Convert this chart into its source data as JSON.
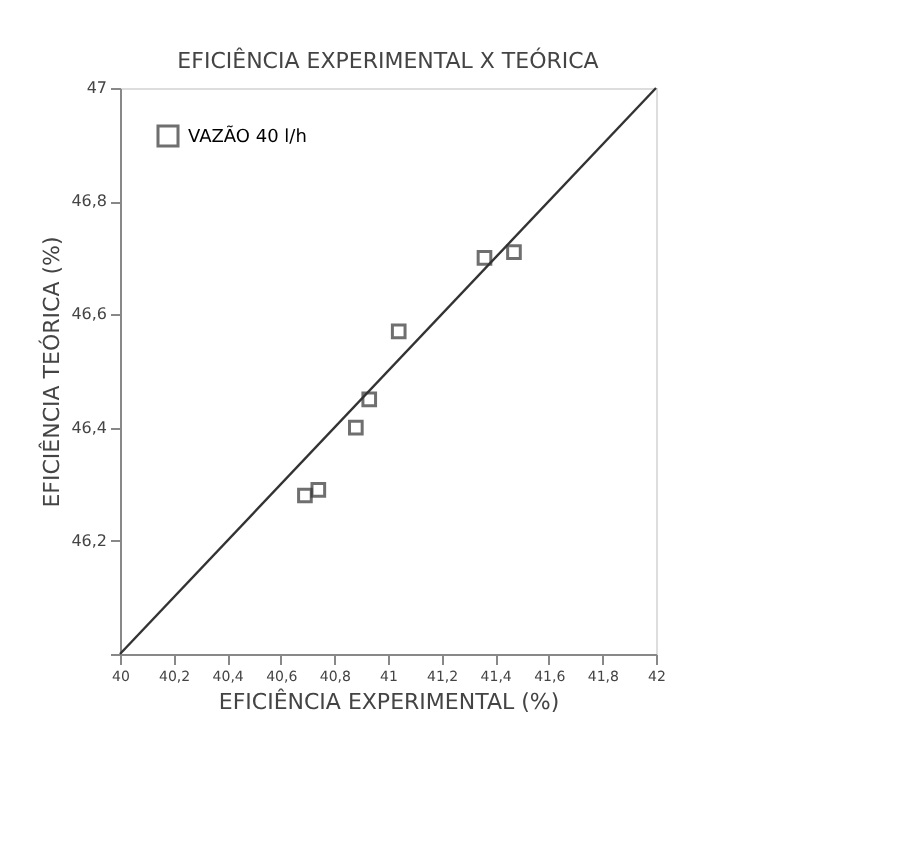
{
  "chart_data": {
    "type": "scatter",
    "title": "EFICIÊNCIA EXPERIMENTAL X TEÓRICA",
    "xlabel": "EFICIÊNCIA EXPERIMENTAL (%)",
    "ylabel": "EFICIÊNCIA TEÓRICA (%)",
    "series": [
      {
        "name": "VAZÃO 40 l/h",
        "color": "#333333",
        "marker": "square",
        "x": [
          40.69,
          40.74,
          40.88,
          40.93,
          41.04,
          41.36,
          41.47
        ],
        "values": [
          46.28,
          46.29,
          46.4,
          46.45,
          46.57,
          46.7,
          46.71
        ]
      },
      {
        "type": "line",
        "color": "#333333",
        "x": [
          40,
          42
        ],
        "values": [
          46,
          47
        ]
      }
    ],
    "xlim": [
      40,
      42
    ],
    "ylim": [
      46,
      47
    ],
    "xticks": [
      40,
      {
        "value": 40.2,
        "label": "40,2"
      },
      {
        "value": 40.4,
        "label": "40,4"
      },
      {
        "value": 40.6,
        "label": "40,6"
      },
      {
        "value": 40.8,
        "label": "40,8"
      },
      41,
      {
        "value": 41.2,
        "label": "41,2"
      },
      {
        "value": 41.4,
        "label": "41,4"
      },
      {
        "value": 41.6,
        "label": "41,6"
      },
      {
        "value": 41.8,
        "label": "41,8"
      },
      42
    ],
    "yticks": [
      {
        "value": 46,
        "label": null
      },
      {
        "value": 46.2,
        "label": "46,2"
      },
      {
        "value": 46.4,
        "label": "46,4"
      },
      {
        "value": 46.6,
        "label": "46,6"
      },
      {
        "value": 46.8,
        "label": "46,8"
      },
      47
    ],
    "legend": "top left",
    "grid": false
  }
}
